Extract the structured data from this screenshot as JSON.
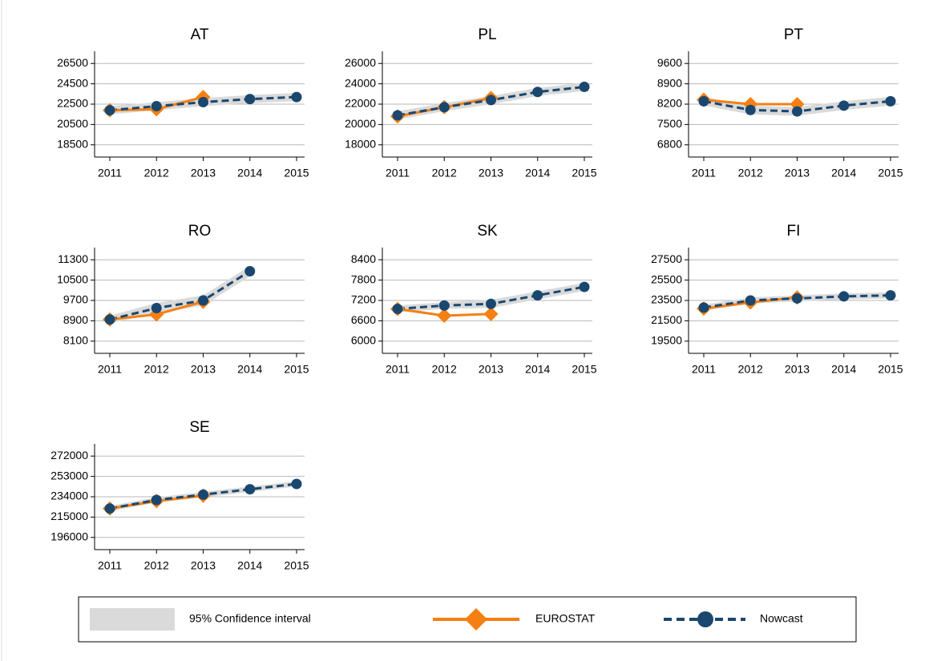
{
  "legend": {
    "items": [
      {
        "name": "95% Confidence interval",
        "color": "#dadada"
      },
      {
        "name": "EUROSTAT",
        "color": "#f57f10"
      },
      {
        "name": "Nowcast",
        "color": "#1a476f"
      }
    ]
  },
  "chart_data": [
    {
      "type": "line",
      "title": "AT",
      "categories": [
        "2011",
        "2012",
        "2013",
        "2014",
        "2015"
      ],
      "ylim": [
        17300,
        27700
      ],
      "yticks": [
        18500,
        20500,
        22500,
        24500,
        26500
      ],
      "series": [
        {
          "lower": [
            21500,
            21900,
            22300,
            22600,
            22800
          ],
          "upper": [
            22300,
            22700,
            23100,
            23400,
            23600
          ]
        },
        {
          "values": [
            21900,
            22000,
            23200,
            null,
            null
          ]
        },
        {
          "values": [
            21900,
            22300,
            22700,
            23000,
            23200
          ]
        }
      ]
    },
    {
      "type": "line",
      "title": "PL",
      "categories": [
        "2011",
        "2012",
        "2013",
        "2014",
        "2015"
      ],
      "ylim": [
        16800,
        27200
      ],
      "yticks": [
        18000,
        20000,
        22000,
        24000,
        26000
      ],
      "series": [
        {
          "lower": [
            20500,
            21300,
            22000,
            22800,
            23300
          ],
          "upper": [
            21300,
            22100,
            22800,
            23600,
            24100
          ]
        },
        {
          "values": [
            20800,
            21700,
            22600,
            null,
            null
          ]
        },
        {
          "values": [
            20900,
            21700,
            22400,
            23200,
            23700
          ]
        }
      ]
    },
    {
      "type": "line",
      "title": "PT",
      "categories": [
        "2011",
        "2012",
        "2013",
        "2014",
        "2015"
      ],
      "ylim": [
        6380,
        10020
      ],
      "yticks": [
        6800,
        7500,
        8200,
        8900,
        9600
      ],
      "series": [
        {
          "lower": [
            8150,
            7850,
            7800,
            8000,
            8150
          ],
          "upper": [
            8450,
            8150,
            8100,
            8300,
            8450
          ]
        },
        {
          "values": [
            8350,
            8200,
            8200,
            null,
            null
          ]
        },
        {
          "values": [
            8300,
            8000,
            7950,
            8150,
            8300
          ]
        }
      ]
    },
    {
      "type": "line",
      "title": "RO",
      "categories": [
        "2011",
        "2012",
        "2013",
        "2014",
        "2015"
      ],
      "ylim": [
        7620,
        11780
      ],
      "yticks": [
        8100,
        8900,
        9700,
        10500,
        11300
      ],
      "series": [
        {
          "lower": [
            8800,
            9200,
            9500,
            10650,
            null
          ],
          "upper": [
            9100,
            9600,
            9900,
            11050,
            null
          ]
        },
        {
          "values": [
            8950,
            9150,
            9650,
            null,
            null
          ]
        },
        {
          "values": [
            8950,
            9400,
            9700,
            10850,
            null
          ]
        }
      ]
    },
    {
      "type": "line",
      "title": "SK",
      "categories": [
        "2011",
        "2012",
        "2013",
        "2014",
        "2015"
      ],
      "ylim": [
        5640,
        8760
      ],
      "yticks": [
        6000,
        6600,
        7200,
        7800,
        8400
      ],
      "series": [
        {
          "lower": [
            6850,
            6950,
            6980,
            7230,
            7480
          ],
          "upper": [
            7050,
            7150,
            7220,
            7470,
            7720
          ]
        },
        {
          "values": [
            6950,
            6750,
            6800,
            null,
            null
          ]
        },
        {
          "values": [
            6950,
            7050,
            7100,
            7350,
            7600
          ]
        }
      ]
    },
    {
      "type": "line",
      "title": "FI",
      "categories": [
        "2011",
        "2012",
        "2013",
        "2014",
        "2015"
      ],
      "ylim": [
        18300,
        28700
      ],
      "yticks": [
        19500,
        21500,
        23500,
        25500,
        27500
      ],
      "series": [
        {
          "lower": [
            22500,
            23200,
            23400,
            23600,
            23700
          ],
          "upper": [
            23100,
            23800,
            24000,
            24200,
            24300
          ]
        },
        {
          "values": [
            22700,
            23300,
            23800,
            null,
            null
          ]
        },
        {
          "values": [
            22800,
            23500,
            23700,
            23900,
            24000
          ]
        }
      ]
    },
    {
      "type": "line",
      "title": "SE",
      "categories": [
        "2011",
        "2012",
        "2013",
        "2014",
        "2015"
      ],
      "ylim": [
        184600,
        283400
      ],
      "yticks": [
        196000,
        215000,
        234000,
        253000,
        272000
      ],
      "series": [
        {
          "lower": [
            220500,
            228500,
            233500,
            238500,
            243500
          ],
          "upper": [
            225500,
            233500,
            238500,
            243500,
            248500
          ]
        },
        {
          "values": [
            223000,
            230000,
            235000,
            null,
            null
          ]
        },
        {
          "values": [
            223000,
            231000,
            236000,
            241000,
            246000
          ]
        }
      ]
    }
  ]
}
